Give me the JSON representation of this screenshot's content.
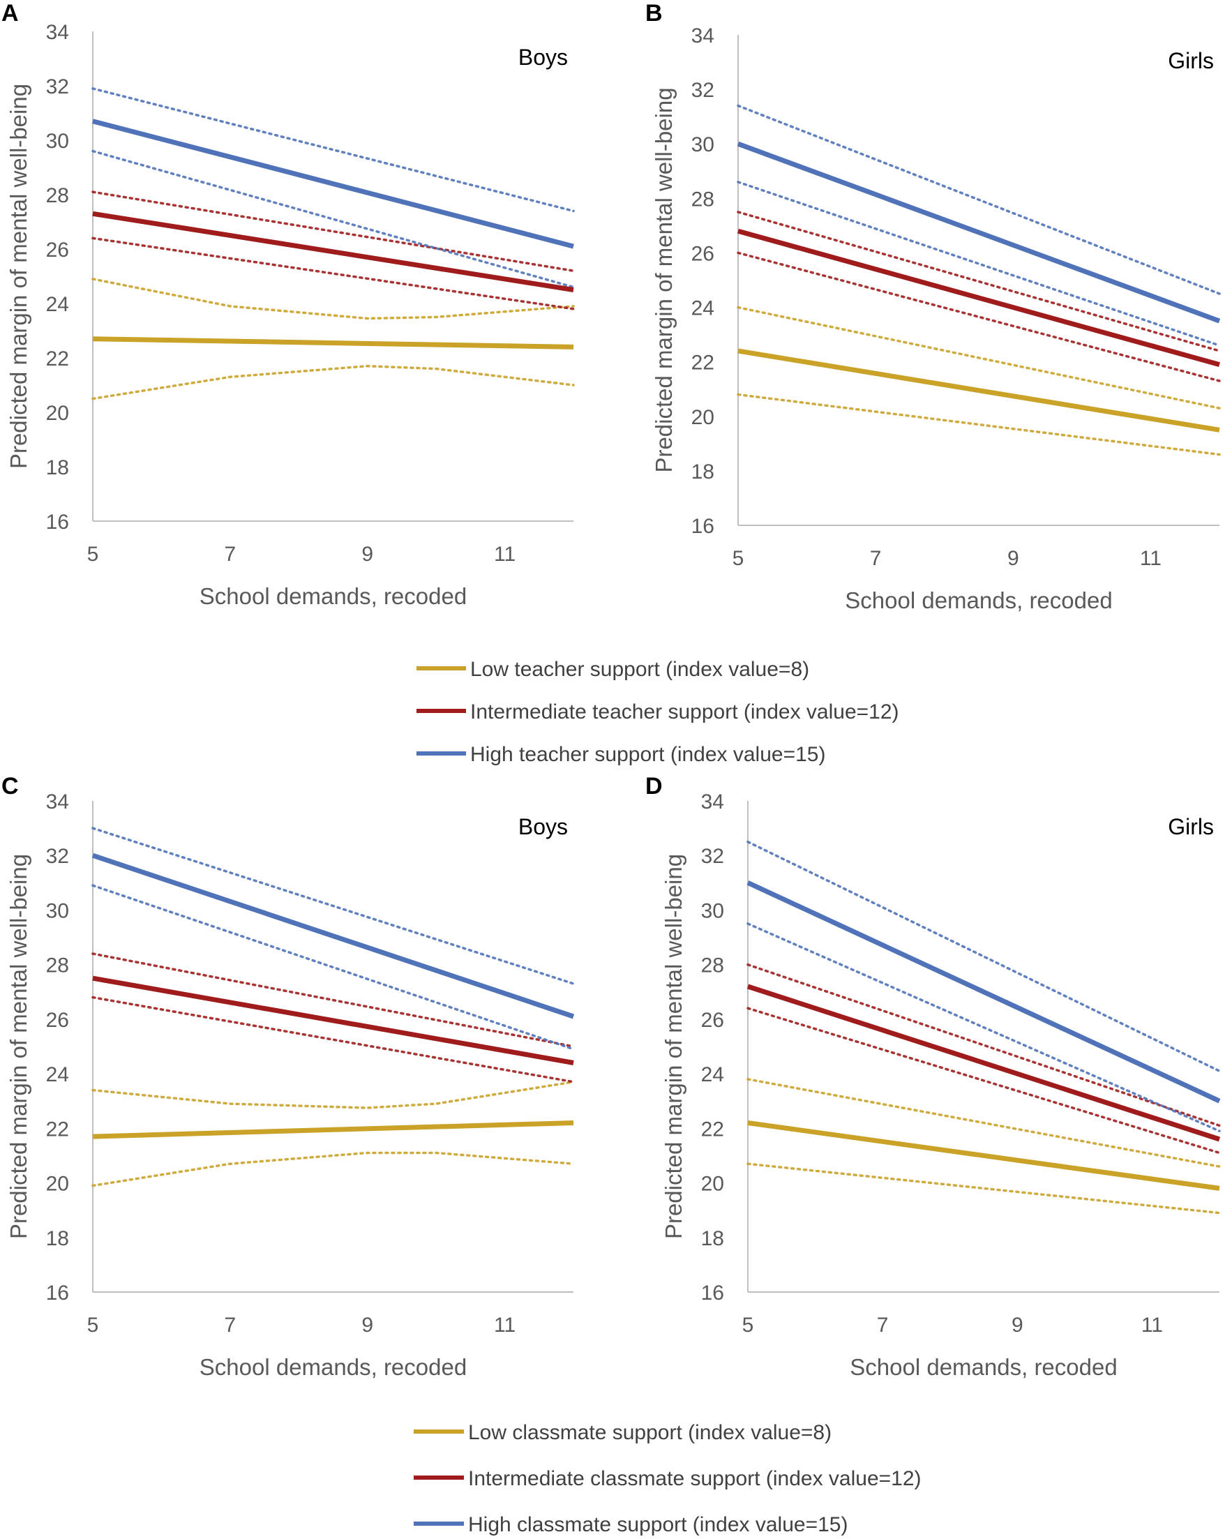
{
  "chart_data": [
    {
      "type": "line",
      "panel": "A",
      "subtitle": "Boys",
      "xlabel": "School demands, recoded",
      "ylabel": "Predicted margin of mental well-being",
      "xlim": [
        5,
        12
      ],
      "ylim": [
        16,
        34
      ],
      "xticks": [
        5,
        7,
        9,
        11
      ],
      "yticks": [
        16,
        18,
        20,
        22,
        24,
        26,
        28,
        30,
        32,
        34
      ],
      "grid": false,
      "series": [
        {
          "name": "Low teacher support (index value=8)",
          "color": "#C9A227",
          "x": [
            5,
            12
          ],
          "y": [
            22.7,
            22.4
          ],
          "ci_upper": {
            "x": [
              5,
              7,
              9,
              10,
              12
            ],
            "y": [
              24.9,
              23.9,
              23.45,
              23.5,
              23.9
            ]
          },
          "ci_lower": {
            "x": [
              5,
              7,
              9,
              10,
              12
            ],
            "y": [
              20.5,
              21.3,
              21.7,
              21.6,
              21.0
            ]
          }
        },
        {
          "name": "Intermediate teacher support (index value=12)",
          "color": "#A01C1C",
          "x": [
            5,
            12
          ],
          "y": [
            27.3,
            24.5
          ],
          "ci_upper": {
            "x": [
              5,
              12
            ],
            "y": [
              28.1,
              25.2
            ]
          },
          "ci_lower": {
            "x": [
              5,
              12
            ],
            "y": [
              26.4,
              23.8
            ]
          }
        },
        {
          "name": "High teacher support (index value=15)",
          "color": "#4F72B8",
          "x": [
            5,
            12
          ],
          "y": [
            30.7,
            26.1
          ],
          "ci_upper": {
            "x": [
              5,
              12
            ],
            "y": [
              31.9,
              27.4
            ]
          },
          "ci_lower": {
            "x": [
              5,
              12
            ],
            "y": [
              29.6,
              24.6
            ]
          }
        }
      ]
    },
    {
      "type": "line",
      "panel": "B",
      "subtitle": "Girls",
      "xlabel": "School demands, recoded",
      "ylabel": "Predicted margin of mental well-being",
      "xlim": [
        5,
        12
      ],
      "ylim": [
        16,
        34
      ],
      "xticks": [
        5,
        7,
        9,
        11
      ],
      "yticks": [
        16,
        18,
        20,
        22,
        24,
        26,
        28,
        30,
        32,
        34
      ],
      "grid": false,
      "series": [
        {
          "name": "Low teacher support (index value=8)",
          "color": "#C9A227",
          "x": [
            5,
            12
          ],
          "y": [
            22.4,
            19.5
          ],
          "ci_upper": {
            "x": [
              5,
              12
            ],
            "y": [
              24.0,
              20.3
            ]
          },
          "ci_lower": {
            "x": [
              5,
              12
            ],
            "y": [
              20.8,
              18.6
            ]
          }
        },
        {
          "name": "Intermediate teacher support (index value=12)",
          "color": "#A01C1C",
          "x": [
            5,
            12
          ],
          "y": [
            26.8,
            21.9
          ],
          "ci_upper": {
            "x": [
              5,
              12
            ],
            "y": [
              27.5,
              22.4
            ]
          },
          "ci_lower": {
            "x": [
              5,
              12
            ],
            "y": [
              26.0,
              21.3
            ]
          }
        },
        {
          "name": "High teacher support (index value=15)",
          "color": "#4F72B8",
          "x": [
            5,
            12
          ],
          "y": [
            30.0,
            23.5
          ],
          "ci_upper": {
            "x": [
              5,
              12
            ],
            "y": [
              31.4,
              24.5
            ]
          },
          "ci_lower": {
            "x": [
              5,
              12
            ],
            "y": [
              28.6,
              22.6
            ]
          }
        }
      ]
    },
    {
      "type": "line",
      "panel": "C",
      "subtitle": "Boys",
      "xlabel": "School demands, recoded",
      "ylabel": "Predicted margin of mental well-being",
      "xlim": [
        5,
        12
      ],
      "ylim": [
        16,
        34
      ],
      "xticks": [
        5,
        7,
        9,
        11
      ],
      "yticks": [
        16,
        18,
        20,
        22,
        24,
        26,
        28,
        30,
        32,
        34
      ],
      "grid": false,
      "series": [
        {
          "name": "Low classmate support (index value=8)",
          "color": "#C9A227",
          "x": [
            5,
            12
          ],
          "y": [
            21.7,
            22.2
          ],
          "ci_upper": {
            "x": [
              5,
              7,
              9,
              10,
              12
            ],
            "y": [
              23.4,
              22.9,
              22.75,
              22.9,
              23.7
            ]
          },
          "ci_lower": {
            "x": [
              5,
              7,
              9,
              10,
              12
            ],
            "y": [
              19.9,
              20.7,
              21.1,
              21.1,
              20.7
            ]
          }
        },
        {
          "name": "Intermediate classmate support (index value=12)",
          "color": "#A01C1C",
          "x": [
            5,
            12
          ],
          "y": [
            27.5,
            24.4
          ],
          "ci_upper": {
            "x": [
              5,
              12
            ],
            "y": [
              28.4,
              25.0
            ]
          },
          "ci_lower": {
            "x": [
              5,
              12
            ],
            "y": [
              26.8,
              23.7
            ]
          }
        },
        {
          "name": "High classmate support (index value=15)",
          "color": "#4F72B8",
          "x": [
            5,
            12
          ],
          "y": [
            32.0,
            26.1
          ],
          "ci_upper": {
            "x": [
              5,
              12
            ],
            "y": [
              33.0,
              27.3
            ]
          },
          "ci_lower": {
            "x": [
              5,
              12
            ],
            "y": [
              30.9,
              24.9
            ]
          }
        }
      ]
    },
    {
      "type": "line",
      "panel": "D",
      "subtitle": "Girls",
      "xlabel": "School demands, recoded",
      "ylabel": "Predicted margin of mental well-being",
      "xlim": [
        5,
        12
      ],
      "ylim": [
        16,
        34
      ],
      "xticks": [
        5,
        7,
        9,
        11
      ],
      "yticks": [
        16,
        18,
        20,
        22,
        24,
        26,
        28,
        30,
        32,
        34
      ],
      "grid": false,
      "series": [
        {
          "name": "Low classmate support (index value=8)",
          "color": "#C9A227",
          "x": [
            5,
            12
          ],
          "y": [
            22.2,
            19.8
          ],
          "ci_upper": {
            "x": [
              5,
              12
            ],
            "y": [
              23.8,
              20.6
            ]
          },
          "ci_lower": {
            "x": [
              5,
              12
            ],
            "y": [
              20.7,
              18.9
            ]
          }
        },
        {
          "name": "Intermediate classmate support (index value=12)",
          "color": "#A01C1C",
          "x": [
            5,
            12
          ],
          "y": [
            27.2,
            21.6
          ],
          "ci_upper": {
            "x": [
              5,
              12
            ],
            "y": [
              28.0,
              22.1
            ]
          },
          "ci_lower": {
            "x": [
              5,
              12
            ],
            "y": [
              26.4,
              21.1
            ]
          }
        },
        {
          "name": "High classmate support (index value=15)",
          "color": "#4F72B8",
          "x": [
            5,
            12
          ],
          "y": [
            31.0,
            23.0
          ],
          "ci_upper": {
            "x": [
              5,
              12
            ],
            "y": [
              32.5,
              24.1
            ]
          },
          "ci_lower": {
            "x": [
              5,
              12
            ],
            "y": [
              29.5,
              21.9
            ]
          }
        }
      ]
    }
  ],
  "legends": [
    {
      "items": [
        {
          "label": "Low teacher support (index value=8)",
          "color": "#C9A227"
        },
        {
          "label": "Intermediate teacher support (index value=12)",
          "color": "#A01C1C"
        },
        {
          "label": "High teacher support (index value=15)",
          "color": "#4F72B8"
        }
      ]
    },
    {
      "items": [
        {
          "label": "Low classmate support (index value=8)",
          "color": "#C9A227"
        },
        {
          "label": "Intermediate classmate support (index value=12)",
          "color": "#A01C1C"
        },
        {
          "label": "High classmate support (index value=15)",
          "color": "#4F72B8"
        }
      ]
    }
  ],
  "colors": {
    "axis": "#BFBFBF",
    "text": "#595959"
  }
}
